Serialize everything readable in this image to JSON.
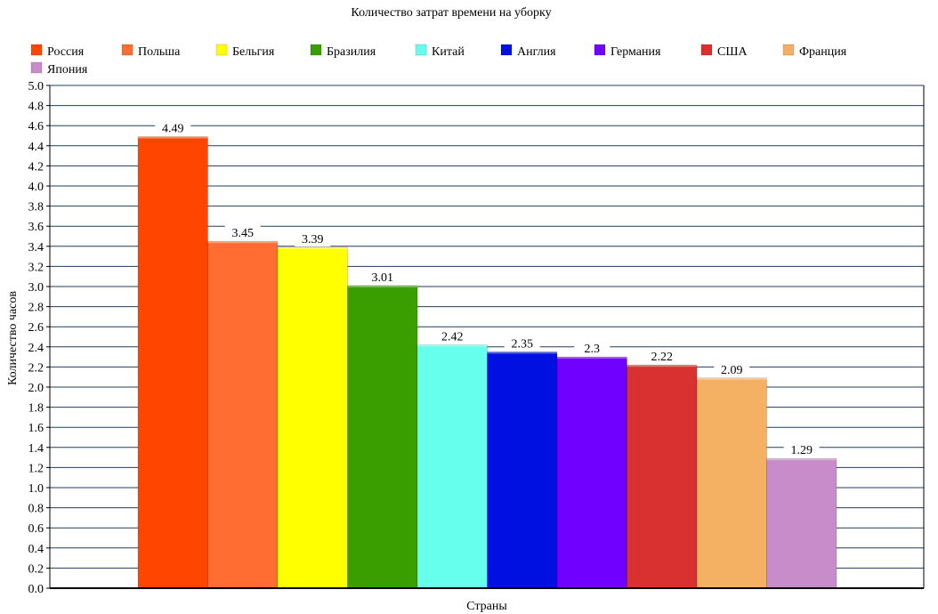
{
  "chart_data": {
    "type": "bar",
    "title": "Количество затрат времени на уборку",
    "xlabel": "Страны",
    "ylabel": "Количество часов",
    "ylim": [
      0,
      5
    ],
    "y_tick_step": 0.2,
    "y_ticks": [
      "0.0",
      "0.2",
      "0.4",
      "0.6",
      "0.8",
      "1.0",
      "1.2",
      "1.4",
      "1.6",
      "1.8",
      "2.0",
      "2.2",
      "2.4",
      "2.6",
      "2.8",
      "3.0",
      "3.2",
      "3.4",
      "3.6",
      "3.8",
      "4.0",
      "4.2",
      "4.4",
      "4.6",
      "4.8",
      "5.0"
    ],
    "grid": true,
    "legend_position": "top",
    "series": [
      {
        "name": "Россия",
        "value": 4.49,
        "label": "4.49",
        "color": "#ff4500"
      },
      {
        "name": "Польша",
        "value": 3.45,
        "label": "3.45",
        "color": "#ff6d33"
      },
      {
        "name": "Бельгия",
        "value": 3.39,
        "label": "3.39",
        "color": "#ffff00"
      },
      {
        "name": "Бразилия",
        "value": 3.01,
        "label": "3.01",
        "color": "#3a9e00"
      },
      {
        "name": "Китай",
        "value": 2.42,
        "label": "2.42",
        "color": "#66ffee"
      },
      {
        "name": "Англия",
        "value": 2.35,
        "label": "2.35",
        "color": "#0010e0"
      },
      {
        "name": "Германия",
        "value": 2.3,
        "label": "2.3",
        "color": "#7000ff"
      },
      {
        "name": "США",
        "value": 2.22,
        "label": "2.22",
        "color": "#d93030"
      },
      {
        "name": "Франция",
        "value": 2.09,
        "label": "2.09",
        "color": "#f4b063"
      },
      {
        "name": "Япония",
        "value": 1.29,
        "label": "1.29",
        "color": "#c98cca"
      }
    ],
    "colors": {
      "grid": "#1f3f5f",
      "axis": "#000000",
      "text": "#000000"
    }
  }
}
